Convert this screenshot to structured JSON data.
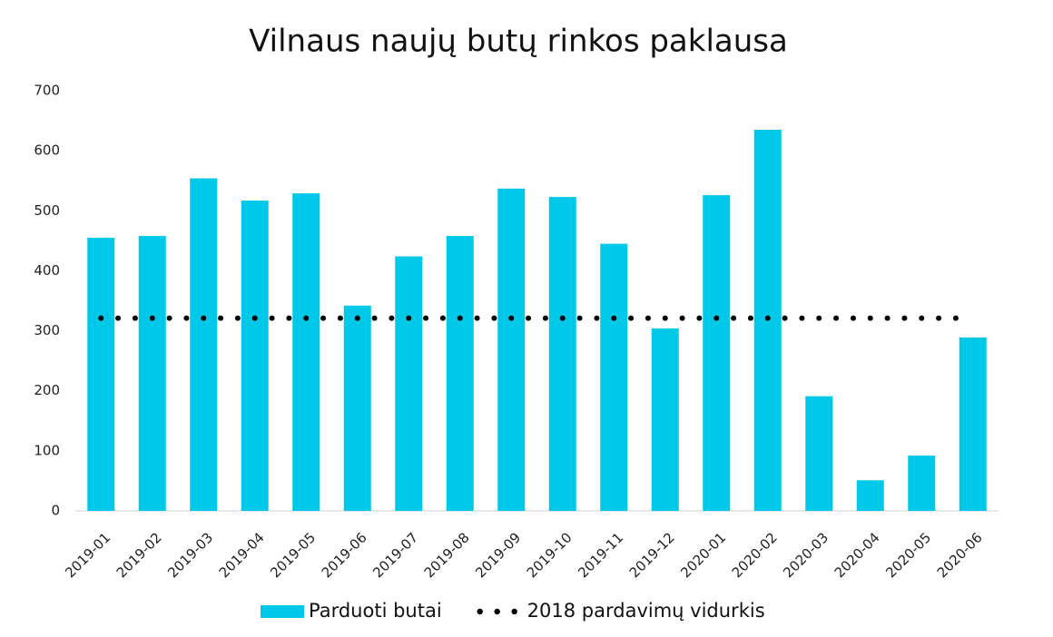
{
  "chart_data": {
    "type": "bar",
    "title": "Vilnaus naujų butų rinkos paklausa",
    "categories": [
      "2019-01",
      "2019-02",
      "2019-03",
      "2019-04",
      "2019-05",
      "2019-06",
      "2019-07",
      "2019-08",
      "2019-09",
      "2019-10",
      "2019-11",
      "2019-12",
      "2020-01",
      "2020-02",
      "2020-03",
      "2020-04",
      "2020-05",
      "2020-06"
    ],
    "series": [
      {
        "name": "Parduoti butai",
        "type": "bar",
        "color": "#00c8e8",
        "values": [
          455,
          458,
          554,
          517,
          529,
          342,
          424,
          458,
          537,
          523,
          445,
          304,
          526,
          635,
          191,
          51,
          92,
          289
        ]
      },
      {
        "name": "2018 pardavimų vidurkis",
        "type": "line",
        "color": "#000000",
        "values": [
          321,
          321,
          321,
          321,
          321,
          321,
          321,
          321,
          321,
          321,
          321,
          321,
          321,
          321,
          321,
          321,
          321,
          321
        ]
      }
    ],
    "ylim": [
      0,
      700
    ],
    "yticks": [
      0,
      100,
      200,
      300,
      400,
      500,
      600,
      700
    ],
    "grid": false,
    "legend": "bottom"
  }
}
